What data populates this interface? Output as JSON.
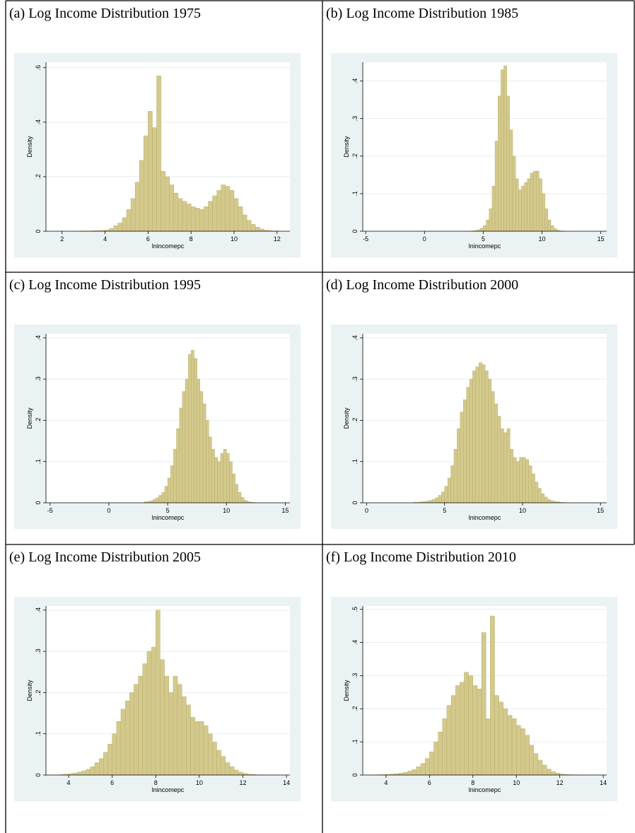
{
  "chart_data": [
    {
      "type": "histogram",
      "title": "(a) Log Income Distribution 1975",
      "xlabel": "lnincomepc",
      "ylabel": "Density",
      "color": "#d3c98c",
      "grid": true,
      "bins": [
        1.8,
        2,
        2.2,
        2.4,
        2.6,
        2.8,
        3,
        3.2,
        3.4,
        3.6,
        3.8,
        4,
        4.2,
        4.4,
        4.6,
        4.8,
        5,
        5.2,
        5.4,
        5.6,
        5.8,
        6,
        6.2,
        6.4,
        6.6,
        6.8,
        7,
        7.2,
        7.4,
        7.6,
        7.8,
        8,
        8.2,
        8.4,
        8.6,
        8.8,
        9,
        9.2,
        9.4,
        9.6,
        9.8,
        10,
        10.2,
        10.4,
        10.6,
        10.8,
        11,
        11.2,
        11.4,
        11.6,
        11.8,
        12,
        12.2
      ],
      "values": [
        0,
        0,
        0,
        0,
        0,
        0.001,
        0.001,
        0.001,
        0.002,
        0.002,
        0.003,
        0.005,
        0.01,
        0.02,
        0.03,
        0.05,
        0.08,
        0.12,
        0.18,
        0.26,
        0.35,
        0.44,
        0.38,
        0.57,
        0.22,
        0.2,
        0.17,
        0.14,
        0.12,
        0.11,
        0.1,
        0.09,
        0.085,
        0.08,
        0.09,
        0.11,
        0.13,
        0.15,
        0.17,
        0.165,
        0.15,
        0.12,
        0.09,
        0.06,
        0.04,
        0.025,
        0.015,
        0.008,
        0.004,
        0.002,
        0.001,
        0.0005
      ],
      "xlim": [
        1.25,
        12.6
      ],
      "ylim": [
        0,
        0.62
      ],
      "xticks": [
        2,
        4,
        6,
        8,
        10,
        12
      ],
      "yticks": [
        0,
        {
          "value": 0.2,
          "label": ".2"
        },
        {
          "value": 0.4,
          "label": ".4"
        },
        {
          "value": 0.6,
          "label": ".6"
        }
      ]
    },
    {
      "type": "histogram",
      "title": "(b) Log Income Distribution 1985",
      "xlabel": "lnincomepc",
      "ylabel": "Density",
      "color": "#d3c98c",
      "grid": true,
      "bins": [
        4,
        4.25,
        4.5,
        4.75,
        5,
        5.25,
        5.5,
        5.75,
        6,
        6.25,
        6.5,
        6.75,
        7,
        7.25,
        7.5,
        7.75,
        8,
        8.25,
        8.5,
        8.75,
        9,
        9.25,
        9.5,
        9.75,
        10,
        10.25,
        10.5,
        10.75,
        11,
        11.25,
        11.5,
        11.75,
        12
      ],
      "values": [
        0.001,
        0.002,
        0.004,
        0.008,
        0.015,
        0.03,
        0.06,
        0.12,
        0.24,
        0.36,
        0.43,
        0.44,
        0.36,
        0.27,
        0.2,
        0.14,
        0.11,
        0.12,
        0.13,
        0.14,
        0.155,
        0.16,
        0.16,
        0.14,
        0.1,
        0.06,
        0.03,
        0.015,
        0.007,
        0.003,
        0.001,
        0.0005
      ],
      "xlim": [
        -5.25,
        15.5
      ],
      "ylim": [
        0,
        0.45
      ],
      "xticks": [
        -5,
        0,
        5,
        10,
        15
      ],
      "yticks": [
        0,
        {
          "value": 0.1,
          "label": ".1"
        },
        {
          "value": 0.2,
          "label": ".2"
        },
        {
          "value": 0.3,
          "label": ".3"
        },
        {
          "value": 0.4,
          "label": ".4"
        }
      ]
    },
    {
      "type": "histogram",
      "title": "(c) Log Income Distribution 1995",
      "xlabel": "lnincomepc",
      "ylabel": "Density",
      "color": "#d3c98c",
      "grid": true,
      "bins": [
        3,
        3.25,
        3.5,
        3.75,
        4,
        4.25,
        4.5,
        4.75,
        5,
        5.25,
        5.5,
        5.75,
        6,
        6.25,
        6.5,
        6.75,
        7,
        7.25,
        7.5,
        7.75,
        8,
        8.25,
        8.5,
        8.75,
        9,
        9.25,
        9.5,
        9.75,
        10,
        10.25,
        10.5,
        10.75,
        11,
        11.25,
        11.5,
        11.75,
        12,
        12.25,
        12.5
      ],
      "values": [
        0.002,
        0.003,
        0.005,
        0.008,
        0.012,
        0.018,
        0.025,
        0.04,
        0.06,
        0.09,
        0.13,
        0.18,
        0.23,
        0.27,
        0.3,
        0.36,
        0.37,
        0.35,
        0.3,
        0.27,
        0.24,
        0.2,
        0.16,
        0.13,
        0.11,
        0.1,
        0.12,
        0.13,
        0.12,
        0.1,
        0.07,
        0.045,
        0.025,
        0.013,
        0.006,
        0.003,
        0.0015,
        0.0007
      ],
      "xlim": [
        -5.35,
        15.4
      ],
      "ylim": [
        0,
        0.41
      ],
      "xticks": [
        -5,
        0,
        5,
        10,
        15
      ],
      "yticks": [
        0,
        {
          "value": 0.1,
          "label": ".1"
        },
        {
          "value": 0.2,
          "label": ".2"
        },
        {
          "value": 0.3,
          "label": ".3"
        },
        {
          "value": 0.4,
          "label": ".4"
        }
      ]
    },
    {
      "type": "histogram",
      "title": "(d) Log Income Distribution 2000",
      "xlabel": "lnincomepc",
      "ylabel": "Density",
      "color": "#d3c98c",
      "grid": true,
      "bins": [
        3,
        3.2,
        3.4,
        3.6,
        3.8,
        4,
        4.2,
        4.4,
        4.6,
        4.8,
        5,
        5.2,
        5.4,
        5.6,
        5.8,
        6,
        6.2,
        6.4,
        6.6,
        6.8,
        7,
        7.2,
        7.4,
        7.6,
        7.8,
        8,
        8.2,
        8.4,
        8.6,
        8.8,
        9,
        9.2,
        9.4,
        9.6,
        9.8,
        10,
        10.2,
        10.4,
        10.6,
        10.8,
        11,
        11.2,
        11.4,
        11.6,
        11.8,
        12,
        12.2,
        12.4,
        12.6,
        12.8,
        13
      ],
      "values": [
        0.001,
        0.001,
        0.002,
        0.003,
        0.004,
        0.006,
        0.008,
        0.012,
        0.018,
        0.026,
        0.04,
        0.06,
        0.09,
        0.13,
        0.18,
        0.22,
        0.25,
        0.28,
        0.3,
        0.32,
        0.33,
        0.34,
        0.335,
        0.32,
        0.3,
        0.27,
        0.24,
        0.21,
        0.18,
        0.17,
        0.18,
        0.13,
        0.11,
        0.1,
        0.11,
        0.11,
        0.105,
        0.09,
        0.07,
        0.05,
        0.035,
        0.022,
        0.014,
        0.008,
        0.005,
        0.003,
        0.002,
        0.001,
        0.0005,
        0.0003
      ],
      "xlim": [
        -0.25,
        15.4
      ],
      "ylim": [
        0,
        0.41
      ],
      "xticks": [
        0,
        5,
        10,
        15
      ],
      "yticks": [
        0,
        {
          "value": 0.1,
          "label": ".1"
        },
        {
          "value": 0.2,
          "label": ".2"
        },
        {
          "value": 0.3,
          "label": ".3"
        },
        {
          "value": 0.4,
          "label": ".4"
        }
      ]
    },
    {
      "type": "histogram",
      "title": "(e) Log Income Distribution 2005",
      "xlabel": "lnincomepc",
      "ylabel": "Density",
      "color": "#d3c98c",
      "grid": true,
      "bins": [
        3.6,
        3.8,
        4,
        4.2,
        4.4,
        4.6,
        4.8,
        5,
        5.2,
        5.4,
        5.6,
        5.8,
        6,
        6.2,
        6.4,
        6.6,
        6.8,
        7,
        7.2,
        7.4,
        7.6,
        7.8,
        8,
        8.2,
        8.4,
        8.6,
        8.8,
        9,
        9.2,
        9.4,
        9.6,
        9.8,
        10,
        10.2,
        10.4,
        10.6,
        10.8,
        11,
        11.2,
        11.4,
        11.6,
        11.8,
        12,
        12.2,
        12.4,
        12.6,
        12.8,
        13
      ],
      "values": [
        0.001,
        0.002,
        0.003,
        0.005,
        0.007,
        0.01,
        0.014,
        0.02,
        0.03,
        0.04,
        0.055,
        0.075,
        0.1,
        0.13,
        0.16,
        0.18,
        0.2,
        0.22,
        0.24,
        0.27,
        0.3,
        0.31,
        0.4,
        0.28,
        0.24,
        0.2,
        0.24,
        0.22,
        0.19,
        0.17,
        0.14,
        0.13,
        0.13,
        0.12,
        0.1,
        0.08,
        0.06,
        0.045,
        0.03,
        0.02,
        0.012,
        0.007,
        0.004,
        0.002,
        0.001,
        0.0005,
        0.0003
      ],
      "xlim": [
        2.96,
        14.16
      ],
      "ylim": [
        0,
        0.41
      ],
      "xticks": [
        4,
        6,
        8,
        10,
        12,
        14
      ],
      "yticks": [
        0,
        {
          "value": 0.1,
          "label": ".1"
        },
        {
          "value": 0.2,
          "label": ".2"
        },
        {
          "value": 0.3,
          "label": ".3"
        },
        {
          "value": 0.4,
          "label": ".4"
        }
      ]
    },
    {
      "type": "histogram",
      "title": "(f) Log Income Distribution 2010",
      "xlabel": "lnincomepc",
      "ylabel": "Density",
      "color": "#d3c98c",
      "grid": true,
      "bins": [
        3.6,
        3.8,
        4,
        4.2,
        4.4,
        4.6,
        4.8,
        5,
        5.2,
        5.4,
        5.6,
        5.8,
        6,
        6.2,
        6.4,
        6.6,
        6.8,
        7,
        7.2,
        7.4,
        7.6,
        7.8,
        8,
        8.2,
        8.4,
        8.6,
        8.8,
        9,
        9.2,
        9.4,
        9.6,
        9.8,
        10,
        10.2,
        10.4,
        10.6,
        10.8,
        11,
        11.2,
        11.4,
        11.6,
        11.8,
        12,
        12.2,
        12.4,
        12.6,
        12.8,
        13
      ],
      "values": [
        0.001,
        0.001,
        0.002,
        0.003,
        0.004,
        0.006,
        0.008,
        0.012,
        0.017,
        0.025,
        0.035,
        0.05,
        0.07,
        0.1,
        0.13,
        0.17,
        0.21,
        0.24,
        0.27,
        0.28,
        0.31,
        0.3,
        0.27,
        0.26,
        0.43,
        0.17,
        0.48,
        0.24,
        0.22,
        0.2,
        0.18,
        0.17,
        0.15,
        0.14,
        0.12,
        0.09,
        0.065,
        0.045,
        0.03,
        0.018,
        0.01,
        0.006,
        0.003,
        0.002,
        0.001,
        0.0005,
        0.0003
      ],
      "xlim": [
        2.93,
        14.16
      ],
      "ylim": [
        0,
        0.51
      ],
      "xticks": [
        4,
        6,
        8,
        10,
        12,
        14
      ],
      "yticks": [
        0,
        {
          "value": 0.1,
          "label": ".1"
        },
        {
          "value": 0.2,
          "label": ".2"
        },
        {
          "value": 0.3,
          "label": ".3"
        },
        {
          "value": 0.4,
          "label": ".4"
        },
        {
          "value": 0.5,
          "label": ".5"
        }
      ]
    }
  ]
}
